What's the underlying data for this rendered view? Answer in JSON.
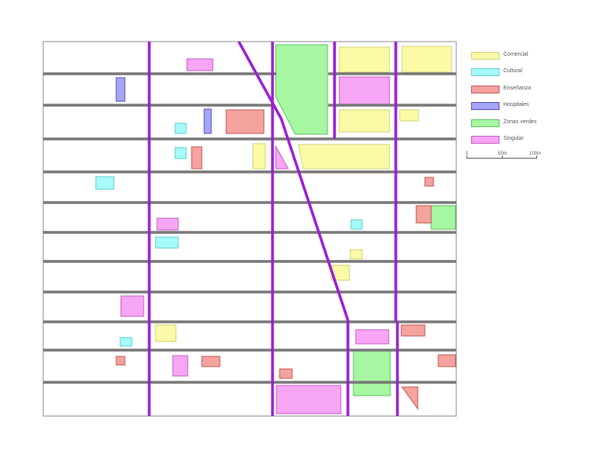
{
  "legend": {
    "items": [
      {
        "label": "Comercial",
        "fill": "#fafaa7",
        "stroke": "#d2d27a"
      },
      {
        "label": "Cultural",
        "fill": "#a7fafa",
        "stroke": "#5fcfd2"
      },
      {
        "label": "Enseñanza",
        "fill": "#f5a39f",
        "stroke": "#c05450"
      },
      {
        "label": "Hospitales",
        "fill": "#a6a6f5",
        "stroke": "#4b4bbb"
      },
      {
        "label": "Zonas verdes",
        "fill": "#a7f7a2",
        "stroke": "#5cbf60"
      },
      {
        "label": "Singular",
        "fill": "#f6a6f4",
        "stroke": "#c05cc0"
      }
    ]
  },
  "scalebar": {
    "labels": [
      "0",
      "50m",
      "100m"
    ]
  },
  "colors": {
    "street": "#777777",
    "avenue": "#9a1ed6",
    "frame": "#888888"
  }
}
